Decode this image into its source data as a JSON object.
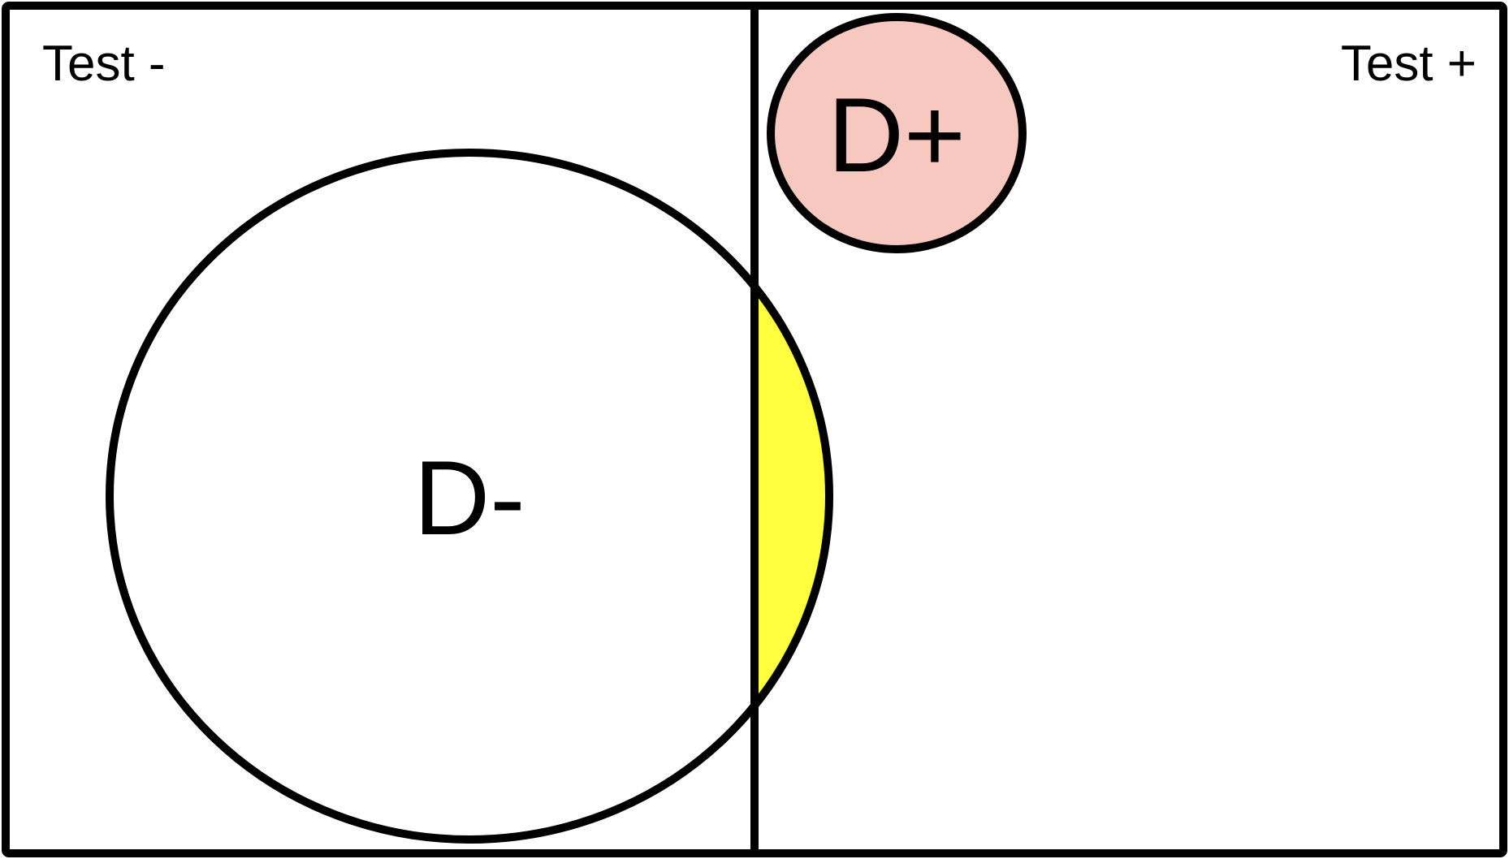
{
  "diagram": {
    "test_negative_label": "Test -",
    "test_positive_label": "Test +",
    "disease_negative_label": "D-",
    "disease_positive_label": "D+"
  },
  "colors": {
    "outline": "#000000",
    "background": "#ffffff",
    "disease_positive_fill": "#f6c8c0",
    "false_positive_fill": "#ffff3f"
  }
}
